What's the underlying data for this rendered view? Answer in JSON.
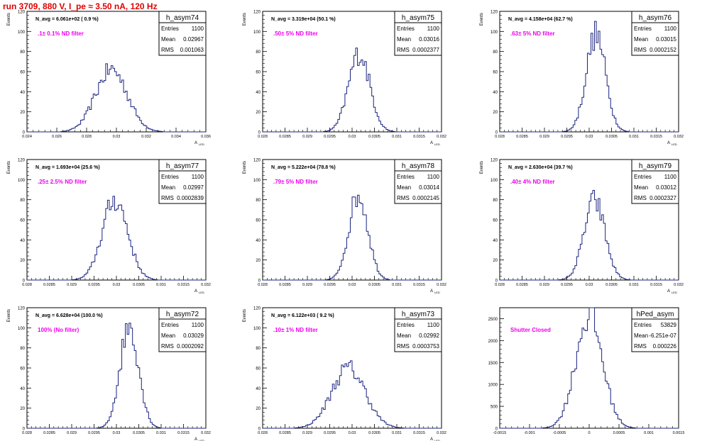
{
  "page_title": "run 3709,   880 V, I_pe ≈ 3.50 nA, 120 Hz",
  "colors": {
    "title": "#e00000",
    "hist_line": "#1a237e",
    "annotation": "#ee00ee",
    "axis": "#000000"
  },
  "chart_data": [
    {
      "type": "bar",
      "name": "h_asym74",
      "stats": {
        "entries": "1100",
        "mean": "0.02967",
        "rms": "0.001063"
      },
      "navg": "N_avg = 6.061e+02 ( 0.9 %)",
      "annotation": ".1± 0.1% ND filter",
      "ylabel": "Events",
      "xlabel": "A_LED",
      "xlim": [
        0.024,
        0.036
      ],
      "ylim": [
        0,
        120
      ],
      "xticks": [
        "0.024",
        "0.026",
        "0.028",
        "0.03",
        "0.032",
        "0.034",
        "0.036"
      ],
      "yticks": [
        "0",
        "20",
        "40",
        "60",
        "80",
        "100",
        "120"
      ],
      "peak": {
        "mean": 0.02967,
        "rms": 0.001063,
        "height": 62
      }
    },
    {
      "type": "bar",
      "name": "h_asym75",
      "stats": {
        "entries": "1100",
        "mean": "0.03016",
        "rms": "0.0002377"
      },
      "navg": "N_avg = 3.319e+04 (50.1 %)",
      "annotation": ".50± 5% ND filter",
      "ylabel": "Events",
      "xlabel": "A_LED",
      "xlim": [
        0.028,
        0.032
      ],
      "ylim": [
        0,
        120
      ],
      "xticks": [
        "0.028",
        "0.0285",
        "0.029",
        "0.0295",
        "0.03",
        "0.0305",
        "0.031",
        "0.0315",
        "0.032"
      ],
      "yticks": [
        "0",
        "20",
        "40",
        "60",
        "80",
        "100",
        "120"
      ],
      "peak": {
        "mean": 0.03016,
        "rms": 0.0002377,
        "height": 78
      }
    },
    {
      "type": "bar",
      "name": "h_asym76",
      "stats": {
        "entries": "1100",
        "mean": "0.03015",
        "rms": "0.0002152"
      },
      "navg": "N_avg = 4.158e+04 (62.7 %)",
      "annotation": ".63± 5% ND filter",
      "ylabel": "Events",
      "xlabel": "A_LED",
      "xlim": [
        0.028,
        0.032
      ],
      "ylim": [
        0,
        120
      ],
      "xticks": [
        "0.028",
        "0.0285",
        "0.029",
        "0.0295",
        "0.03",
        "0.0305",
        "0.031",
        "0.0315",
        "0.032"
      ],
      "yticks": [
        "0",
        "20",
        "40",
        "60",
        "80",
        "100",
        "120"
      ],
      "peak": {
        "mean": 0.03015,
        "rms": 0.0002152,
        "height": 97
      }
    },
    {
      "type": "bar",
      "name": "h_asym77",
      "stats": {
        "entries": "1100",
        "mean": "0.02997",
        "rms": "0.0002839"
      },
      "navg": "N_avg = 1.693e+04 (25.6 %)",
      "annotation": ".25± 2.5% ND filter",
      "ylabel": "Events",
      "xlabel": "A_LED",
      "xlim": [
        0.028,
        0.032
      ],
      "ylim": [
        0,
        120
      ],
      "xticks": [
        "0.028",
        "0.0285",
        "0.029",
        "0.0295",
        "0.03",
        "0.0305",
        "0.031",
        "0.0315",
        "0.032"
      ],
      "yticks": [
        "0",
        "20",
        "40",
        "60",
        "80",
        "100",
        "120"
      ],
      "peak": {
        "mean": 0.02997,
        "rms": 0.0002839,
        "height": 80
      }
    },
    {
      "type": "bar",
      "name": "h_asym78",
      "stats": {
        "entries": "1100",
        "mean": "0.03014",
        "rms": "0.0002145"
      },
      "navg": "N_avg = 5.222e+04 (78.8 %)",
      "annotation": ".79± 5% ND filter",
      "ylabel": "Events",
      "xlabel": "A_LED",
      "xlim": [
        0.028,
        0.032
      ],
      "ylim": [
        0,
        120
      ],
      "xticks": [
        "0.028",
        "0.0285",
        "0.029",
        "0.0295",
        "0.03",
        "0.0305",
        "0.031",
        "0.0315",
        "0.032"
      ],
      "yticks": [
        "0",
        "20",
        "40",
        "60",
        "80",
        "100",
        "120"
      ],
      "peak": {
        "mean": 0.03014,
        "rms": 0.0002145,
        "height": 85
      }
    },
    {
      "type": "bar",
      "name": "h_asym79",
      "stats": {
        "entries": "1100",
        "mean": "0.03012",
        "rms": "0.0002327"
      },
      "navg": "N_avg = 2.630e+04 (39.7 %)",
      "annotation": ".40± 4% ND filter",
      "ylabel": "Events",
      "xlabel": "A_LED",
      "xlim": [
        0.028,
        0.032
      ],
      "ylim": [
        0,
        120
      ],
      "xticks": [
        "0.028",
        "0.0285",
        "0.029",
        "0.0295",
        "0.03",
        "0.0305",
        "0.031",
        "0.0315",
        "0.032"
      ],
      "yticks": [
        "0",
        "20",
        "40",
        "60",
        "80",
        "100",
        "120"
      ],
      "peak": {
        "mean": 0.03012,
        "rms": 0.0002327,
        "height": 79
      }
    },
    {
      "type": "bar",
      "name": "h_asym72",
      "stats": {
        "entries": "1100",
        "mean": "0.03029",
        "rms": "0.0002092"
      },
      "navg": "N_avg = 6.628e+04 (100.0 %)",
      "annotation": "100% (No filter)",
      "ylabel": "Events",
      "xlabel": "A_LED",
      "xlim": [
        0.028,
        0.032
      ],
      "ylim": [
        0,
        120
      ],
      "xticks": [
        "0.028",
        "0.0285",
        "0.029",
        "0.0295",
        "0.03",
        "0.0305",
        "0.031",
        "0.0315",
        "0.032"
      ],
      "yticks": [
        "0",
        "20",
        "40",
        "60",
        "80",
        "100",
        "120"
      ],
      "peak": {
        "mean": 0.03029,
        "rms": 0.0002092,
        "height": 102
      }
    },
    {
      "type": "bar",
      "name": "h_asym73",
      "stats": {
        "entries": "1100",
        "mean": "0.02992",
        "rms": "0.0003753"
      },
      "navg": "N_avg = 6.122e+03 ( 9.2 %)",
      "annotation": ".10± 1% ND filter",
      "ylabel": "Events",
      "xlabel": "A_LED",
      "xlim": [
        0.028,
        0.032
      ],
      "ylim": [
        0,
        120
      ],
      "xticks": [
        "0.028",
        "0.0285",
        "0.029",
        "0.0295",
        "0.03",
        "0.0305",
        "0.031",
        "0.0315",
        "0.032"
      ],
      "yticks": [
        "0",
        "20",
        "40",
        "60",
        "80",
        "100",
        "120"
      ],
      "peak": {
        "mean": 0.02992,
        "rms": 0.0003753,
        "height": 60
      }
    },
    {
      "type": "bar",
      "name": "hPed_asym",
      "stats": {
        "entries": "53829",
        "mean": "-6.251e-07",
        "rms": "0.000226"
      },
      "navg": "",
      "annotation": "Shutter Closed",
      "ylabel": "",
      "xlabel": "",
      "xlim": [
        -0.0015,
        0.0015
      ],
      "ylim": [
        0,
        2750
      ],
      "xticks": [
        "-0.0015",
        "-0.001",
        "-0.0005",
        "0",
        "0.0005",
        "0.001",
        "0.0015"
      ],
      "yticks": [
        "0",
        "500",
        "1000",
        "1500",
        "2000",
        "2500"
      ],
      "peak": {
        "mean": 0,
        "rms": 0.000226,
        "height": 2560
      }
    }
  ],
  "stat_labels": {
    "entries": "Entries",
    "mean": "Mean",
    "rms": "RMS"
  }
}
